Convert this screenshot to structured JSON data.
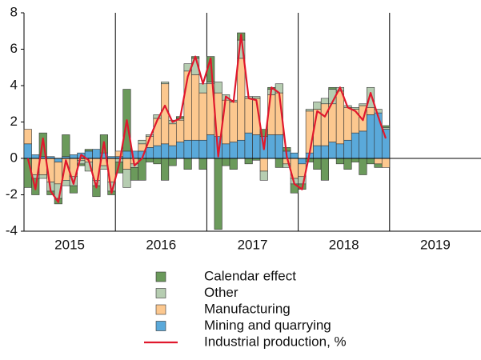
{
  "chart_data": {
    "type": "bar",
    "x": [
      2015.042,
      2015.125,
      2015.208,
      2015.292,
      2015.375,
      2015.458,
      2015.542,
      2015.625,
      2015.708,
      2015.792,
      2015.875,
      2015.958,
      2016.042,
      2016.125,
      2016.208,
      2016.292,
      2016.375,
      2016.458,
      2016.542,
      2016.625,
      2016.708,
      2016.792,
      2016.875,
      2016.958,
      2017.042,
      2017.125,
      2017.208,
      2017.292,
      2017.375,
      2017.458,
      2017.542,
      2017.625,
      2017.708,
      2017.792,
      2017.875,
      2017.958,
      2018.042,
      2018.125,
      2018.208,
      2018.292,
      2018.375,
      2018.458,
      2018.542,
      2018.625,
      2018.708,
      2018.792,
      2018.875,
      2018.958
    ],
    "series": [
      {
        "name": "Calendar effect",
        "color": "#6b9a5b",
        "values": [
          -1.6,
          -0.9,
          1.3,
          -0.2,
          -0.3,
          1.2,
          -0.4,
          -0.1,
          0.1,
          -0.6,
          1.0,
          -0.2,
          -0.6,
          3.4,
          -0.7,
          -1.2,
          -0.2,
          -0.3,
          -1.2,
          -0.4,
          0.1,
          -0.6,
          0.1,
          -0.6,
          1.4,
          -3.9,
          -0.4,
          -0.6,
          0.4,
          -0.3,
          -0.1,
          0.4,
          0.1,
          -0.5,
          0.2,
          -0.5,
          -0.3,
          -0.2,
          -0.6,
          -1.2,
          0.1,
          -0.3,
          -0.6,
          -0.2,
          -0.9,
          -0.3,
          -0.2,
          0.1
        ]
      },
      {
        "name": "Other",
        "color": "#b6cdb1",
        "values": [
          0,
          -0.2,
          -0.2,
          -0.5,
          -0.8,
          -0.3,
          -0.5,
          -0.2,
          -0.5,
          -0.3,
          -0.2,
          -0.5,
          -0.2,
          -1.0,
          -0.2,
          0.2,
          0.1,
          0.2,
          0.1,
          0.2,
          0.1,
          0.4,
          0.9,
          0.5,
          0.1,
          0.6,
          0.3,
          0.1,
          1.0,
          0.1,
          0.1,
          -0.5,
          0.3,
          0.5,
          -0.2,
          -0.3,
          -0.4,
          0.1,
          0.4,
          0.3,
          0.8,
          0.2,
          0.1,
          0.1,
          0.1,
          1.1,
          0.2,
          0.1
        ]
      },
      {
        "name": "Manufacturing",
        "color": "#fcc88f",
        "values": [
          0.8,
          -0.9,
          -0.9,
          -1.3,
          -1.2,
          -1.2,
          -1.0,
          -0.1,
          -0.2,
          -1.2,
          -0.4,
          -1.3,
          0.3,
          -0.6,
          -0.3,
          0.4,
          0.6,
          1.5,
          3.3,
          1.2,
          1.2,
          3.8,
          3.6,
          2.6,
          2.8,
          2.4,
          2.4,
          2.2,
          4.5,
          1.9,
          2.0,
          -0.7,
          2.2,
          2.3,
          -0.3,
          -1.1,
          -0.7,
          2.3,
          2.0,
          2.3,
          2.1,
          2.9,
          1.8,
          1.3,
          1.4,
          0.4,
          -0.3,
          -0.5
        ]
      },
      {
        "name": "Mining and quarrying",
        "color": "#5aa9da",
        "values": [
          0.8,
          0.2,
          0.1,
          0.1,
          -0.2,
          0.1,
          0.2,
          0.3,
          0.4,
          0.5,
          0.3,
          0.1,
          0.1,
          0.4,
          0.4,
          0.4,
          0.6,
          0.7,
          0.8,
          0.7,
          0.9,
          1.0,
          1.0,
          1.0,
          1.3,
          1.2,
          0.8,
          0.9,
          1.0,
          1.4,
          1.3,
          1.2,
          1.3,
          1.3,
          0.4,
          0.3,
          -0.3,
          0.3,
          0.7,
          0.7,
          0.9,
          0.8,
          1.0,
          1.4,
          1.5,
          2.4,
          2.5,
          1.6
        ]
      },
      {
        "name": "Industrial production, %",
        "type": "line",
        "color": "#e0182d",
        "values": [
          0,
          -1.7,
          1.1,
          -1.8,
          -2.4,
          -0.1,
          -1.4,
          0.2,
          -0.1,
          -1.6,
          0.9,
          -1.9,
          -0.3,
          2.1,
          -0.4,
          0,
          1.1,
          2.1,
          2.9,
          2.0,
          2.2,
          4.5,
          5.6,
          4.1,
          5.5,
          0.1,
          3.4,
          3.1,
          6.8,
          3.3,
          3.2,
          0.5,
          3.9,
          3.6,
          0.1,
          -1.4,
          -1.7,
          0.3,
          2.6,
          2.3,
          3.1,
          3.9,
          2.8,
          2.6,
          2.1,
          3.6,
          2.3,
          1.1
        ]
      }
    ],
    "xlim": [
      2015,
      2020
    ],
    "xticks": [
      2015,
      2016,
      2017,
      2018,
      2019
    ],
    "ylim": [
      -4,
      8
    ],
    "yticks": [
      8,
      6,
      4,
      2,
      0,
      -2,
      -4
    ]
  }
}
